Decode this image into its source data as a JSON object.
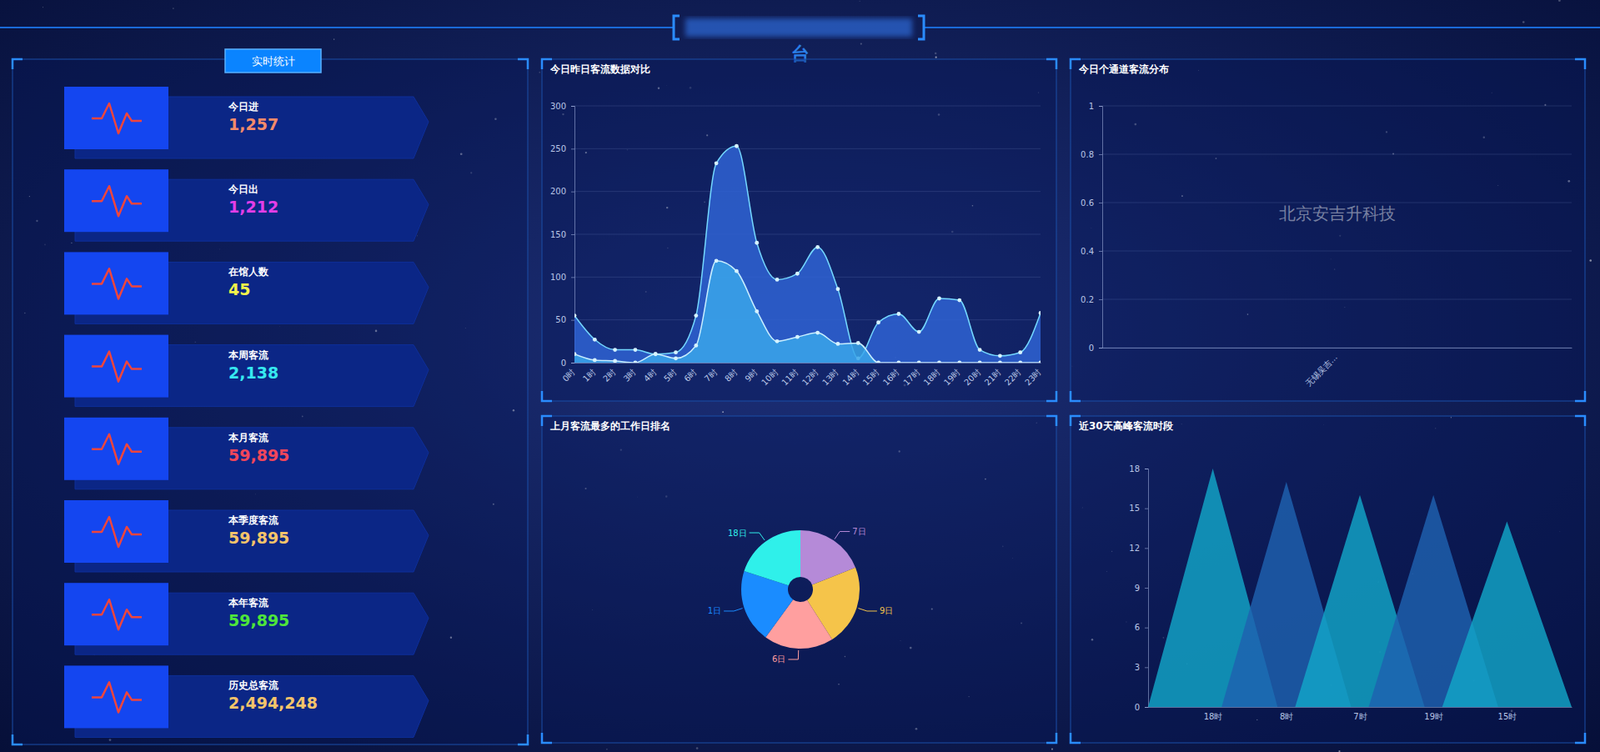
{
  "header": {
    "title": "台"
  },
  "stats": {
    "button": "实时统计",
    "items": [
      {
        "label": "今日进",
        "value": "1,257",
        "color": "#f48a6a"
      },
      {
        "label": "今日出",
        "value": "1,212",
        "color": "#e23ee8"
      },
      {
        "label": "在馆人数",
        "value": "45",
        "color": "#f2f24a"
      },
      {
        "label": "本周客流",
        "value": "2,138",
        "color": "#36e8f0"
      },
      {
        "label": "本月客流",
        "value": "59,895",
        "color": "#f2465a"
      },
      {
        "label": "本季度客流",
        "value": "59,895",
        "color": "#f5c46a"
      },
      {
        "label": "本年客流",
        "value": "59,895",
        "color": "#4ee63a"
      },
      {
        "label": "历史总客流",
        "value": "2,494,248",
        "color": "#f5c46a"
      }
    ]
  },
  "chart_data": [
    {
      "type": "area",
      "title": "今日昨日客流数据对比",
      "categories": [
        "0时",
        "1时",
        "2时",
        "3时",
        "4时",
        "5时",
        "6时",
        "7时",
        "8时",
        "9时",
        "10时",
        "11时",
        "12时",
        "13时",
        "14时",
        "15时",
        "16时",
        "17时",
        "18时",
        "19时",
        "20时",
        "21时",
        "22时",
        "23时"
      ],
      "series": [
        {
          "color": "#2f63d4",
          "values": [
            55,
            27,
            15,
            15,
            10,
            12,
            55,
            233,
            253,
            140,
            97,
            104,
            135,
            86,
            5,
            47,
            57,
            36,
            75,
            73,
            15,
            8,
            12,
            58
          ]
        },
        {
          "color": "#3aa6ea",
          "values": [
            10,
            3,
            2,
            0,
            10,
            5,
            20,
            119,
            107,
            60,
            25,
            30,
            35,
            22,
            23,
            0,
            0,
            0,
            0,
            0,
            0,
            0,
            0,
            0
          ]
        }
      ],
      "ylim": [
        0,
        300
      ],
      "yticks": [
        0,
        50,
        100,
        150,
        200,
        250,
        300
      ],
      "grid": true,
      "marker": "circle"
    },
    {
      "type": "bar",
      "title": "今日个通道客流分布",
      "categories": [
        "无锡吴吉..."
      ],
      "values": [
        0
      ],
      "color": "#3aa6ea",
      "ylim": [
        0,
        1
      ],
      "yticks": [
        0,
        0.2,
        0.4,
        0.6,
        0.8,
        1
      ],
      "grid": true,
      "annotation": "北京安吉升科技"
    },
    {
      "type": "pie",
      "title": "上月客流最多的工作日排名",
      "categories": [
        "7日",
        "9日",
        "6日",
        "1日",
        "18日"
      ],
      "values": [
        19,
        22,
        19,
        20,
        20
      ],
      "colors": [
        "#b58ad8",
        "#f5c44a",
        "#ff9f9f",
        "#1a8cff",
        "#2ff0ea"
      ]
    },
    {
      "type": "bar",
      "marker": "triangle",
      "title": "近30天高峰客流时段",
      "categories": [
        "18时",
        "8时",
        "7时",
        "19时",
        "15时"
      ],
      "values": [
        18,
        17,
        16,
        16,
        14
      ],
      "colors": [
        "#12a6c8",
        "#1f62b0",
        "#12a6c8",
        "#1f62b0",
        "#12a6c8"
      ],
      "ylim": [
        0,
        18
      ],
      "yticks": [
        0,
        3,
        6,
        9,
        12,
        15,
        18
      ],
      "grid": false
    }
  ]
}
